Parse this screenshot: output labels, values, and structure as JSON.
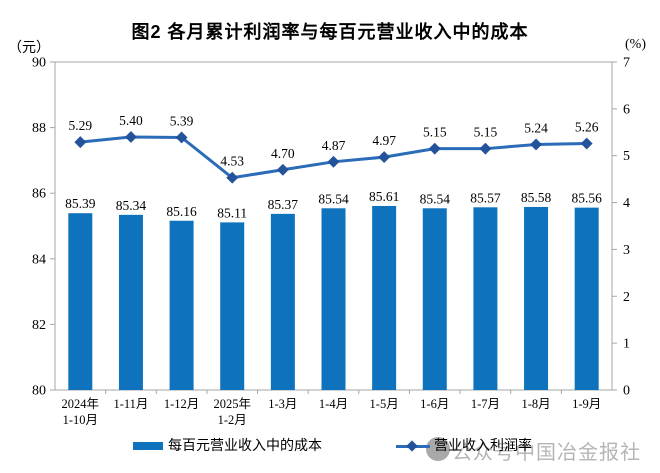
{
  "title": "图2 各月累计利润率与每百元营业收入中的成本",
  "axis_unit_left": "（元）",
  "axis_unit_right": "(%)",
  "legend": {
    "bar_label": "每百元营业收入中的成本",
    "line_label": "营业收入利润率"
  },
  "watermark": {
    "text": "公众号中国冶金报社"
  },
  "colors": {
    "bar": "#0F72BC",
    "line": "#2B6CB9",
    "marker": "#24539B",
    "axis": "#A6A6A6",
    "text": "#000000",
    "watermark": "#B5B5B5"
  },
  "chart_data": {
    "type": "bar+line combo",
    "title": "图2 各月累计利润率与每百元营业收入中的成本",
    "categories": [
      [
        "2024年",
        "1-10月"
      ],
      [
        "1-11月"
      ],
      [
        "1-12月"
      ],
      [
        "2025年",
        "1-2月"
      ],
      [
        "1-3月"
      ],
      [
        "1-4月"
      ],
      [
        "1-5月"
      ],
      [
        "1-6月"
      ],
      [
        "1-7月"
      ],
      [
        "1-8月"
      ],
      [
        "1-9月"
      ]
    ],
    "series": [
      {
        "name": "每百元营业收入中的成本",
        "type": "bar",
        "axis": "left",
        "unit": "元",
        "values": [
          85.39,
          85.34,
          85.16,
          85.11,
          85.37,
          85.54,
          85.61,
          85.54,
          85.57,
          85.58,
          85.56
        ]
      },
      {
        "name": "营业收入利润率",
        "type": "line",
        "axis": "right",
        "unit": "%",
        "values": [
          5.29,
          5.4,
          5.39,
          4.53,
          4.7,
          4.87,
          4.97,
          5.15,
          5.15,
          5.24,
          5.26
        ]
      }
    ],
    "left_axis": {
      "label": "（元）",
      "min": 80,
      "max": 90,
      "ticks": [
        90,
        88,
        86,
        84,
        82,
        80
      ]
    },
    "right_axis": {
      "label": "(%)",
      "min": 0,
      "max": 7,
      "ticks": [
        7,
        6,
        5,
        4,
        3,
        2,
        1,
        0
      ]
    },
    "grid": false,
    "data_labels": true,
    "legend_position": "bottom"
  }
}
